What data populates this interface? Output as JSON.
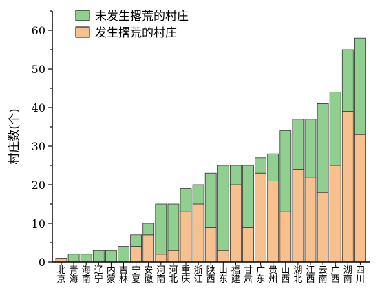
{
  "chart_data": {
    "type": "bar",
    "stacked": true,
    "title": "",
    "xlabel": "",
    "ylabel": "村庄数(个)",
    "ylim": [
      0,
      65
    ],
    "yticks": [
      0,
      10,
      20,
      30,
      40,
      50,
      60
    ],
    "grid": false,
    "legend_position": "top-left",
    "categories": [
      "北京",
      "青海",
      "海南",
      "辽宁",
      "内蒙",
      "吉林",
      "宁夏",
      "安徽",
      "河南",
      "河北",
      "重庆",
      "浙江",
      "陕西",
      "山东",
      "福建",
      "甘肃",
      "广东",
      "贵州",
      "山西",
      "湖北",
      "江西",
      "云南",
      "广西",
      "湖南",
      "四川"
    ],
    "series": [
      {
        "name": "发生撂荒的村庄",
        "color": "#f7c08f",
        "values": [
          1,
          0,
          0,
          0,
          0,
          0,
          4,
          7,
          2,
          3,
          13,
          15,
          9,
          3,
          20,
          9,
          23,
          21,
          13,
          24,
          22,
          18,
          25,
          39,
          33
        ]
      },
      {
        "name": "未发生撂荒的村庄",
        "color": "#90cf90",
        "values": [
          0,
          2,
          2,
          3,
          3,
          4,
          3,
          3,
          13,
          12,
          6,
          5,
          14,
          22,
          5,
          16,
          4,
          7,
          21,
          13,
          15,
          23,
          19,
          16,
          25
        ]
      }
    ]
  }
}
